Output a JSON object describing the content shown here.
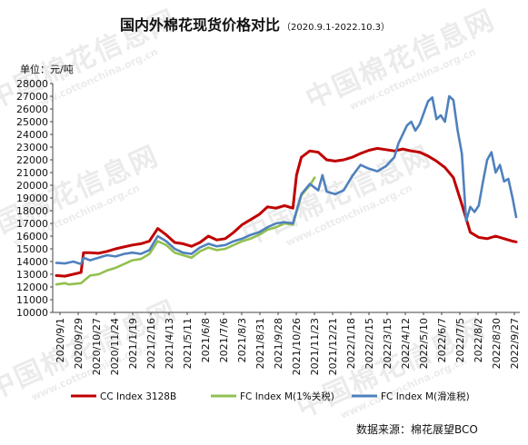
{
  "watermarks": [
    "中国棉花信息网",
    "www.cottonchina.org.cn"
  ],
  "title": "国内外棉花现货价格对比",
  "title_range": "（2020.9.1-2022.10.3）",
  "unit_label": "单位：元/吨",
  "source_note": "数据来源：棉花展望BCO",
  "chart_data": {
    "type": "line",
    "title": "国内外棉花现货价格对比",
    "subtitle": "（2020.9.1-2022.10.3）",
    "ylabel": "单位：元/吨",
    "xlabel": "",
    "ylim": [
      10000,
      28000
    ],
    "yticks": [
      10000,
      11000,
      12000,
      13000,
      14000,
      15000,
      16000,
      17000,
      18000,
      19000,
      20000,
      21000,
      22000,
      23000,
      24000,
      25000,
      26000,
      27000,
      28000
    ],
    "xrange": [
      "2020-09-01",
      "2022-10-03"
    ],
    "x_tick_labels": [
      "2020/9/1",
      "2020/9/29",
      "2020/10/27",
      "2020/11/24",
      "2021/1/19",
      "2021/2/16",
      "2021/4/13",
      "2021/5/11",
      "2021/6/8",
      "2021/7/6",
      "2021/8/3",
      "2021/8/31",
      "2021/9/28",
      "2021/10/26",
      "2021/11/23",
      "2021/12/21",
      "2022/1/18",
      "2022/2/15",
      "2022/3/15",
      "2022/4/12",
      "2022/5/10",
      "2022/6/7",
      "2022/7/5",
      "2022/8/2",
      "2022/8/30",
      "2022/9/27"
    ],
    "grid": false,
    "legend_position": "bottom",
    "series": [
      {
        "name": "CC Index 3128B",
        "color": "#c00000",
        "points": [
          [
            "2020-09-01",
            12900
          ],
          [
            "2020-09-15",
            12850
          ],
          [
            "2020-09-29",
            13000
          ],
          [
            "2020-10-12",
            13150
          ],
          [
            "2020-10-16",
            14700
          ],
          [
            "2020-10-27",
            14700
          ],
          [
            "2020-11-10",
            14650
          ],
          [
            "2020-11-24",
            14800
          ],
          [
            "2020-12-08",
            15000
          ],
          [
            "2020-12-22",
            15150
          ],
          [
            "2021-01-05",
            15300
          ],
          [
            "2021-01-19",
            15400
          ],
          [
            "2021-02-02",
            15600
          ],
          [
            "2021-02-16",
            16600
          ],
          [
            "2021-03-02",
            16100
          ],
          [
            "2021-03-16",
            15500
          ],
          [
            "2021-03-30",
            15400
          ],
          [
            "2021-04-13",
            15200
          ],
          [
            "2021-04-27",
            15500
          ],
          [
            "2021-05-11",
            16000
          ],
          [
            "2021-05-25",
            15700
          ],
          [
            "2021-06-08",
            15800
          ],
          [
            "2021-06-22",
            16300
          ],
          [
            "2021-07-06",
            16900
          ],
          [
            "2021-07-20",
            17300
          ],
          [
            "2021-08-03",
            17700
          ],
          [
            "2021-08-17",
            18300
          ],
          [
            "2021-08-31",
            18200
          ],
          [
            "2021-09-14",
            18400
          ],
          [
            "2021-09-28",
            18200
          ],
          [
            "2021-10-04",
            20800
          ],
          [
            "2021-10-12",
            22200
          ],
          [
            "2021-10-26",
            22700
          ],
          [
            "2021-11-09",
            22600
          ],
          [
            "2021-11-23",
            22000
          ],
          [
            "2021-12-07",
            21900
          ],
          [
            "2021-12-21",
            22000
          ],
          [
            "2022-01-04",
            22200
          ],
          [
            "2022-01-18",
            22500
          ],
          [
            "2022-02-01",
            22750
          ],
          [
            "2022-02-15",
            22900
          ],
          [
            "2022-03-01",
            22800
          ],
          [
            "2022-03-15",
            22700
          ],
          [
            "2022-03-29",
            22850
          ],
          [
            "2022-04-12",
            22700
          ],
          [
            "2022-04-26",
            22600
          ],
          [
            "2022-05-10",
            22300
          ],
          [
            "2022-05-24",
            21900
          ],
          [
            "2022-06-07",
            21400
          ],
          [
            "2022-06-21",
            20600
          ],
          [
            "2022-07-05",
            18500
          ],
          [
            "2022-07-19",
            16300
          ],
          [
            "2022-08-02",
            15900
          ],
          [
            "2022-08-16",
            15800
          ],
          [
            "2022-08-30",
            16000
          ],
          [
            "2022-09-13",
            15800
          ],
          [
            "2022-09-27",
            15600
          ],
          [
            "2022-10-03",
            15550
          ]
        ]
      },
      {
        "name": "FC Index M(1%关税)",
        "color": "#92c050",
        "points": [
          [
            "2020-09-01",
            12200
          ],
          [
            "2020-09-15",
            12300
          ],
          [
            "2020-09-22",
            12200
          ],
          [
            "2020-10-12",
            12300
          ],
          [
            "2020-10-27",
            12900
          ],
          [
            "2020-11-10",
            13000
          ],
          [
            "2020-11-24",
            13300
          ],
          [
            "2020-12-08",
            13500
          ],
          [
            "2020-12-22",
            13800
          ],
          [
            "2021-01-05",
            14100
          ],
          [
            "2021-01-19",
            14200
          ],
          [
            "2021-02-02",
            14600
          ],
          [
            "2021-02-16",
            15600
          ],
          [
            "2021-03-02",
            15300
          ],
          [
            "2021-03-16",
            14700
          ],
          [
            "2021-03-30",
            14500
          ],
          [
            "2021-04-13",
            14300
          ],
          [
            "2021-04-27",
            14800
          ],
          [
            "2021-05-11",
            15100
          ],
          [
            "2021-05-25",
            14900
          ],
          [
            "2021-06-08",
            15000
          ],
          [
            "2021-06-22",
            15300
          ],
          [
            "2021-07-06",
            15600
          ],
          [
            "2021-07-20",
            15800
          ],
          [
            "2021-08-03",
            16100
          ],
          [
            "2021-08-17",
            16500
          ],
          [
            "2021-08-31",
            16700
          ],
          [
            "2021-09-14",
            17000
          ],
          [
            "2021-09-28",
            16900
          ],
          [
            "2021-10-12",
            19200
          ],
          [
            "2021-10-26",
            20000
          ],
          [
            "2021-11-03",
            20600
          ]
        ]
      },
      {
        "name": "FC Index M(滑准税)",
        "color": "#4f81bd",
        "points": [
          [
            "2020-09-01",
            13900
          ],
          [
            "2020-09-15",
            13850
          ],
          [
            "2020-09-29",
            14000
          ],
          [
            "2020-10-12",
            13800
          ],
          [
            "2020-10-16",
            14300
          ],
          [
            "2020-10-27",
            14100
          ],
          [
            "2020-11-10",
            14300
          ],
          [
            "2020-11-24",
            14500
          ],
          [
            "2020-12-08",
            14400
          ],
          [
            "2020-12-22",
            14600
          ],
          [
            "2021-01-05",
            14700
          ],
          [
            "2021-01-19",
            14600
          ],
          [
            "2021-02-02",
            14900
          ],
          [
            "2021-02-16",
            16000
          ],
          [
            "2021-03-02",
            15600
          ],
          [
            "2021-03-16",
            15000
          ],
          [
            "2021-03-30",
            14700
          ],
          [
            "2021-04-13",
            14600
          ],
          [
            "2021-04-27",
            15100
          ],
          [
            "2021-05-11",
            15400
          ],
          [
            "2021-05-25",
            15200
          ],
          [
            "2021-06-08",
            15300
          ],
          [
            "2021-06-22",
            15600
          ],
          [
            "2021-07-06",
            15800
          ],
          [
            "2021-07-20",
            16100
          ],
          [
            "2021-08-03",
            16300
          ],
          [
            "2021-08-17",
            16700
          ],
          [
            "2021-08-31",
            17000
          ],
          [
            "2021-09-14",
            17100
          ],
          [
            "2021-09-28",
            17000
          ],
          [
            "2021-10-12",
            19300
          ],
          [
            "2021-10-26",
            20100
          ],
          [
            "2021-11-09",
            19600
          ],
          [
            "2021-11-16",
            20800
          ],
          [
            "2021-11-23",
            19500
          ],
          [
            "2021-12-07",
            19300
          ],
          [
            "2021-12-21",
            19600
          ],
          [
            "2022-01-04",
            20700
          ],
          [
            "2022-01-18",
            21600
          ],
          [
            "2022-02-01",
            21300
          ],
          [
            "2022-02-15",
            21100
          ],
          [
            "2022-03-01",
            21500
          ],
          [
            "2022-03-15",
            22200
          ],
          [
            "2022-03-22",
            23300
          ],
          [
            "2022-04-05",
            24700
          ],
          [
            "2022-04-12",
            25000
          ],
          [
            "2022-04-19",
            24300
          ],
          [
            "2022-04-26",
            24800
          ],
          [
            "2022-05-10",
            26600
          ],
          [
            "2022-05-17",
            26900
          ],
          [
            "2022-05-24",
            25200
          ],
          [
            "2022-05-31",
            25500
          ],
          [
            "2022-06-07",
            25000
          ],
          [
            "2022-06-14",
            27000
          ],
          [
            "2022-06-21",
            26700
          ],
          [
            "2022-06-28",
            24300
          ],
          [
            "2022-07-05",
            22500
          ],
          [
            "2022-07-12",
            17200
          ],
          [
            "2022-07-19",
            18300
          ],
          [
            "2022-07-26",
            17900
          ],
          [
            "2022-08-02",
            18400
          ],
          [
            "2022-08-09",
            20300
          ],
          [
            "2022-08-16",
            22000
          ],
          [
            "2022-08-23",
            22600
          ],
          [
            "2022-08-30",
            21000
          ],
          [
            "2022-09-06",
            21600
          ],
          [
            "2022-09-13",
            20300
          ],
          [
            "2022-09-20",
            20500
          ],
          [
            "2022-09-27",
            19000
          ],
          [
            "2022-10-03",
            17500
          ]
        ]
      }
    ]
  }
}
